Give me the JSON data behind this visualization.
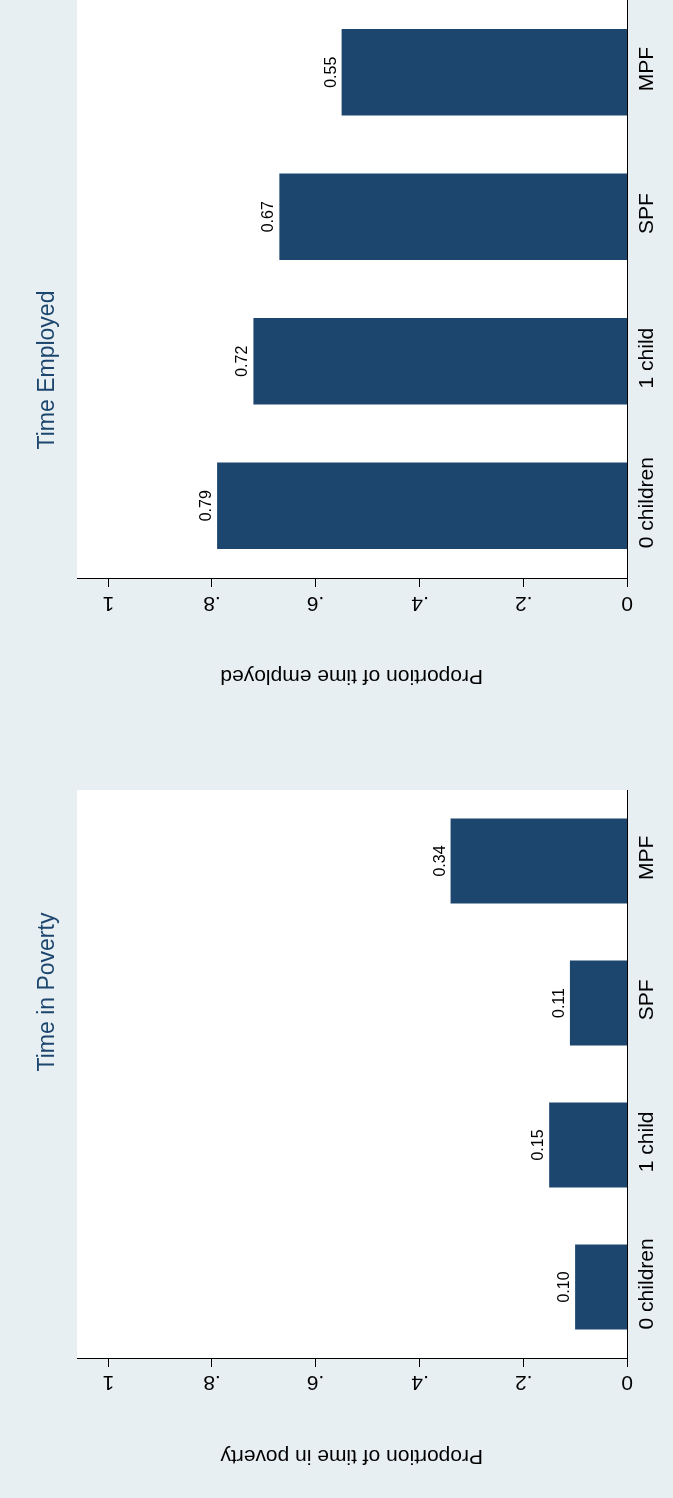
{
  "chart_data": [
    {
      "type": "bar",
      "orientation": "horizontal",
      "title": "Time Employed",
      "xlabel": "Proportion of time employed",
      "categories": [
        "MPF",
        "SPF",
        "1 child",
        "0 children"
      ],
      "values": [
        0.55,
        0.67,
        0.72,
        0.79
      ],
      "value_labels": [
        "0.55",
        "0.67",
        "0.72",
        "0.79"
      ],
      "color": "#1c466e",
      "xlim": [
        1.06,
        0
      ],
      "xticks": [
        1,
        {
          "value": 0.8,
          "label": ".8"
        },
        {
          "value": 0.6,
          "label": ".6"
        },
        {
          "value": 0.4,
          "label": ".4"
        },
        {
          "value": 0.2,
          "label": ".2"
        },
        0
      ],
      "grid": false
    },
    {
      "type": "bar",
      "orientation": "horizontal",
      "title": "Time in Poverty",
      "xlabel": "Proportion of time in poverty",
      "categories": [
        "MPF",
        "SPF",
        "1 child",
        "0 children"
      ],
      "values": [
        0.34,
        0.11,
        0.15,
        0.1
      ],
      "value_labels": [
        "0.34",
        "0.11",
        "0.15",
        "0.10"
      ],
      "color": "#1c466e",
      "xlim": [
        1.06,
        0
      ],
      "xticks": [
        1,
        {
          "value": 0.8,
          "label": ".8"
        },
        {
          "value": 0.6,
          "label": ".6"
        },
        {
          "value": 0.4,
          "label": ".4"
        },
        {
          "value": 0.2,
          "label": ".2"
        },
        0
      ],
      "grid": false
    }
  ]
}
